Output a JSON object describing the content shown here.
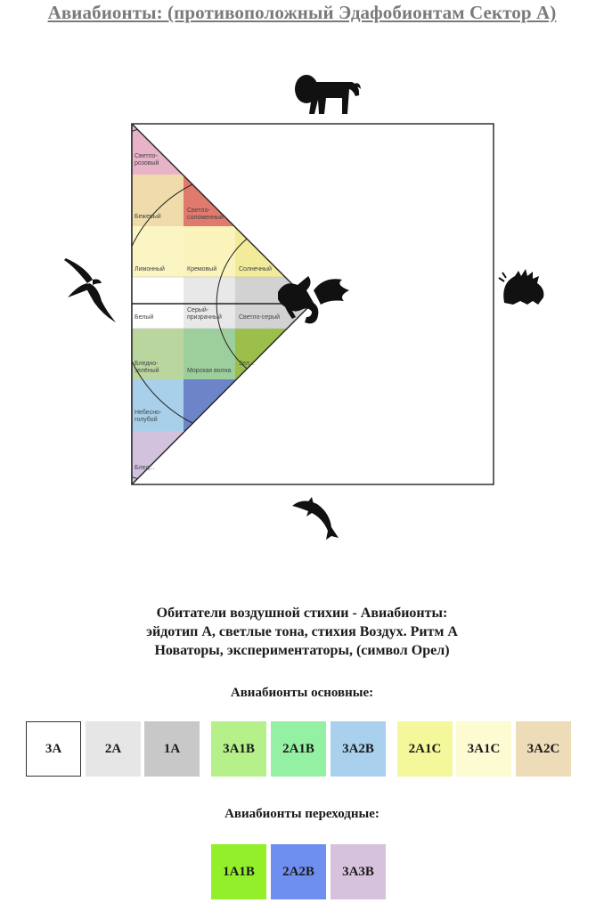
{
  "title": "Авиабионты: (противоположный Эдафобионтам Сектор А)",
  "diagram": {
    "icons": [
      "lion-icon",
      "eagle-icon",
      "porcupine-icon",
      "dolphin-icon",
      "dragon-icon"
    ],
    "cells": [
      {
        "label": "Светло-\nрозовый",
        "color": "#e8b2c8"
      },
      {
        "label": "Бежевый",
        "color": "#efdcaa"
      },
      {
        "label": "Светло-\nсоломенный",
        "color": "#e07a6e"
      },
      {
        "label": "Лимонный",
        "color": "#fbf5c4"
      },
      {
        "label": "Кремовый",
        "color": "#fbf3bc"
      },
      {
        "label": "Солнечный",
        "color": "#f2eb9a"
      },
      {
        "label": "Белый",
        "color": "#ffffff"
      },
      {
        "label": "Серый-\nпризрачный",
        "color": "#e8e8e8"
      },
      {
        "label": "Светло-серый",
        "color": "#d2d2d2"
      },
      {
        "label": "Бледно-\nзелёный",
        "color": "#b9d69e"
      },
      {
        "label": "Морская волна",
        "color": "#9ccf9c"
      },
      {
        "label": "Зел...",
        "color": "#9bbf4a"
      },
      {
        "label": "Небесно-\nголубой",
        "color": "#a8d0ea"
      },
      {
        "label": "",
        "color": "#6d84c8"
      },
      {
        "label": "Блед...",
        "color": "#d2c2de"
      }
    ]
  },
  "description": {
    "line1": "Обитатели воздушной стихии - Авиабионты:",
    "line2": "эйдотип А, светлые тона, стихия Воздух. Ритм А",
    "line3": "Новаторы, экспериментаторы, (символ Орел)"
  },
  "basic": {
    "heading": "Авиабионты основные:",
    "items": [
      {
        "label": "3A",
        "color": "#ffffff"
      },
      {
        "label": "2A",
        "color": "#e6e6e6"
      },
      {
        "label": "1A",
        "color": "#c8c8c8"
      },
      {
        "label": "3A1B",
        "color": "#b5f08a"
      },
      {
        "label": "2A1B",
        "color": "#94f0a2"
      },
      {
        "label": "3A2B",
        "color": "#a9d0ec"
      },
      {
        "label": "2A1C",
        "color": "#f4f79a"
      },
      {
        "label": "3A1C",
        "color": "#fdfbd2"
      },
      {
        "label": "3A2C",
        "color": "#eedbb8"
      }
    ]
  },
  "transitional": {
    "heading": "Авиабионты переходные:",
    "items": [
      {
        "label": "1A1B",
        "color": "#92ef2a"
      },
      {
        "label": "2A2B",
        "color": "#6f8ff0"
      },
      {
        "label": "3A3B",
        "color": "#d6c2dc"
      }
    ]
  }
}
